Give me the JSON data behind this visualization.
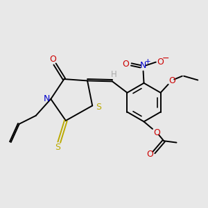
{
  "background_color": "#e8e8e8",
  "figsize": [
    3.0,
    3.0
  ],
  "dpi": 100,
  "atom_colors": {
    "C": "#000000",
    "H": "#aaaaaa",
    "N": "#0000cc",
    "O": "#cc0000",
    "S": "#bbaa00"
  },
  "bond_color": "#000000",
  "bond_width": 1.4
}
